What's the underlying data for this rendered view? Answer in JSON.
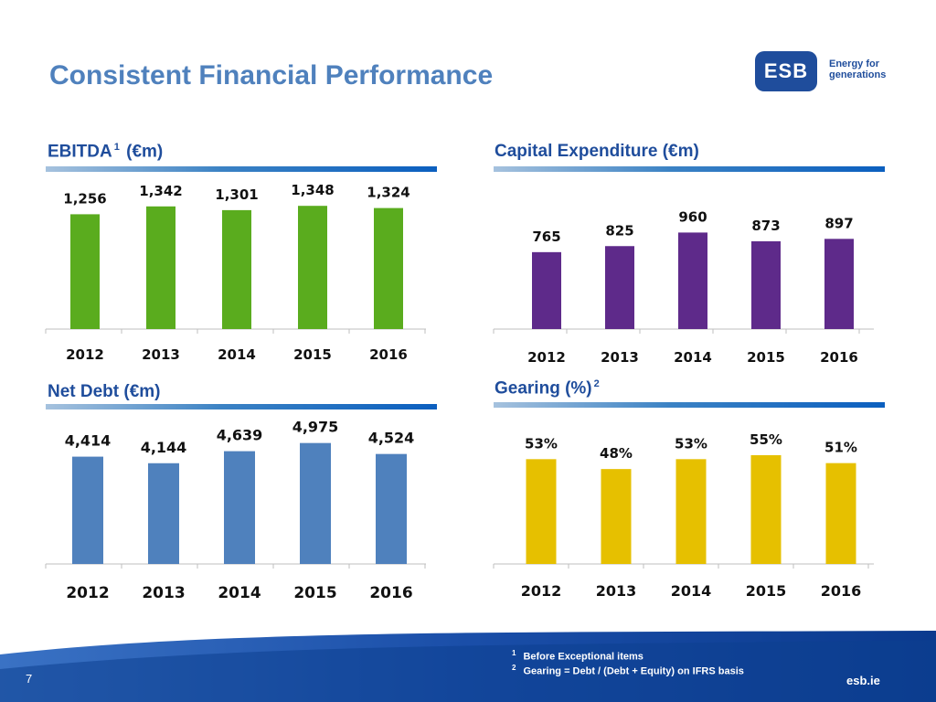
{
  "page": {
    "title": "Consistent Financial Performance",
    "number": "7",
    "site": "esb.ie"
  },
  "logo": {
    "mark": "ESB",
    "tagline_line1": "Energy for",
    "tagline_line2": "generations"
  },
  "colors": {
    "title": "#4f81bd",
    "heading": "#1f4d9c",
    "green": "#5aac1e",
    "purple": "#5e2a8a",
    "blue": "#4f81bd",
    "gold": "#e6c000",
    "footer": "#0d3f8f"
  },
  "footnotes": [
    {
      "marker": "1",
      "text": "Before Exceptional items"
    },
    {
      "marker": "2",
      "text": "Gearing = Debt / (Debt + Equity) on IFRS basis"
    }
  ],
  "chart_data": [
    {
      "type": "bar",
      "title": "EBITDA",
      "title_marker": "1",
      "title_suffix": "(€m)",
      "categories": [
        "2012",
        "2013",
        "2014",
        "2015",
        "2016"
      ],
      "values": [
        1256,
        1342,
        1301,
        1348,
        1324
      ],
      "labels": [
        "1,256",
        "1,342",
        "1,301",
        "1,348",
        "1,324"
      ],
      "ylim": [
        0,
        1400
      ],
      "color": "#5aac1e"
    },
    {
      "type": "bar",
      "title": "Capital Expenditure (€m)",
      "categories": [
        "2012",
        "2013",
        "2014",
        "2015",
        "2016"
      ],
      "values": [
        765,
        825,
        960,
        873,
        897
      ],
      "labels": [
        "765",
        "825",
        "960",
        "873",
        "897"
      ],
      "ylim": [
        0,
        1000
      ],
      "color": "#5e2a8a"
    },
    {
      "type": "bar",
      "title": "Net Debt (€m)",
      "categories": [
        "2012",
        "2013",
        "2014",
        "2015",
        "2016"
      ],
      "values": [
        4414,
        4144,
        4639,
        4975,
        4524
      ],
      "labels": [
        "4,414",
        "4,144",
        "4,639",
        "4,975",
        "4,524"
      ],
      "ylim": [
        0,
        5000
      ],
      "color": "#4f81bd"
    },
    {
      "type": "bar",
      "title": "Gearing (%)",
      "title_marker": "2",
      "categories": [
        "2012",
        "2013",
        "2014",
        "2015",
        "2016"
      ],
      "values": [
        53,
        48,
        53,
        55,
        51
      ],
      "labels": [
        "53%",
        "48%",
        "53%",
        "55%",
        "51%"
      ],
      "ylim": [
        0,
        55
      ],
      "color": "#e6c000"
    }
  ]
}
